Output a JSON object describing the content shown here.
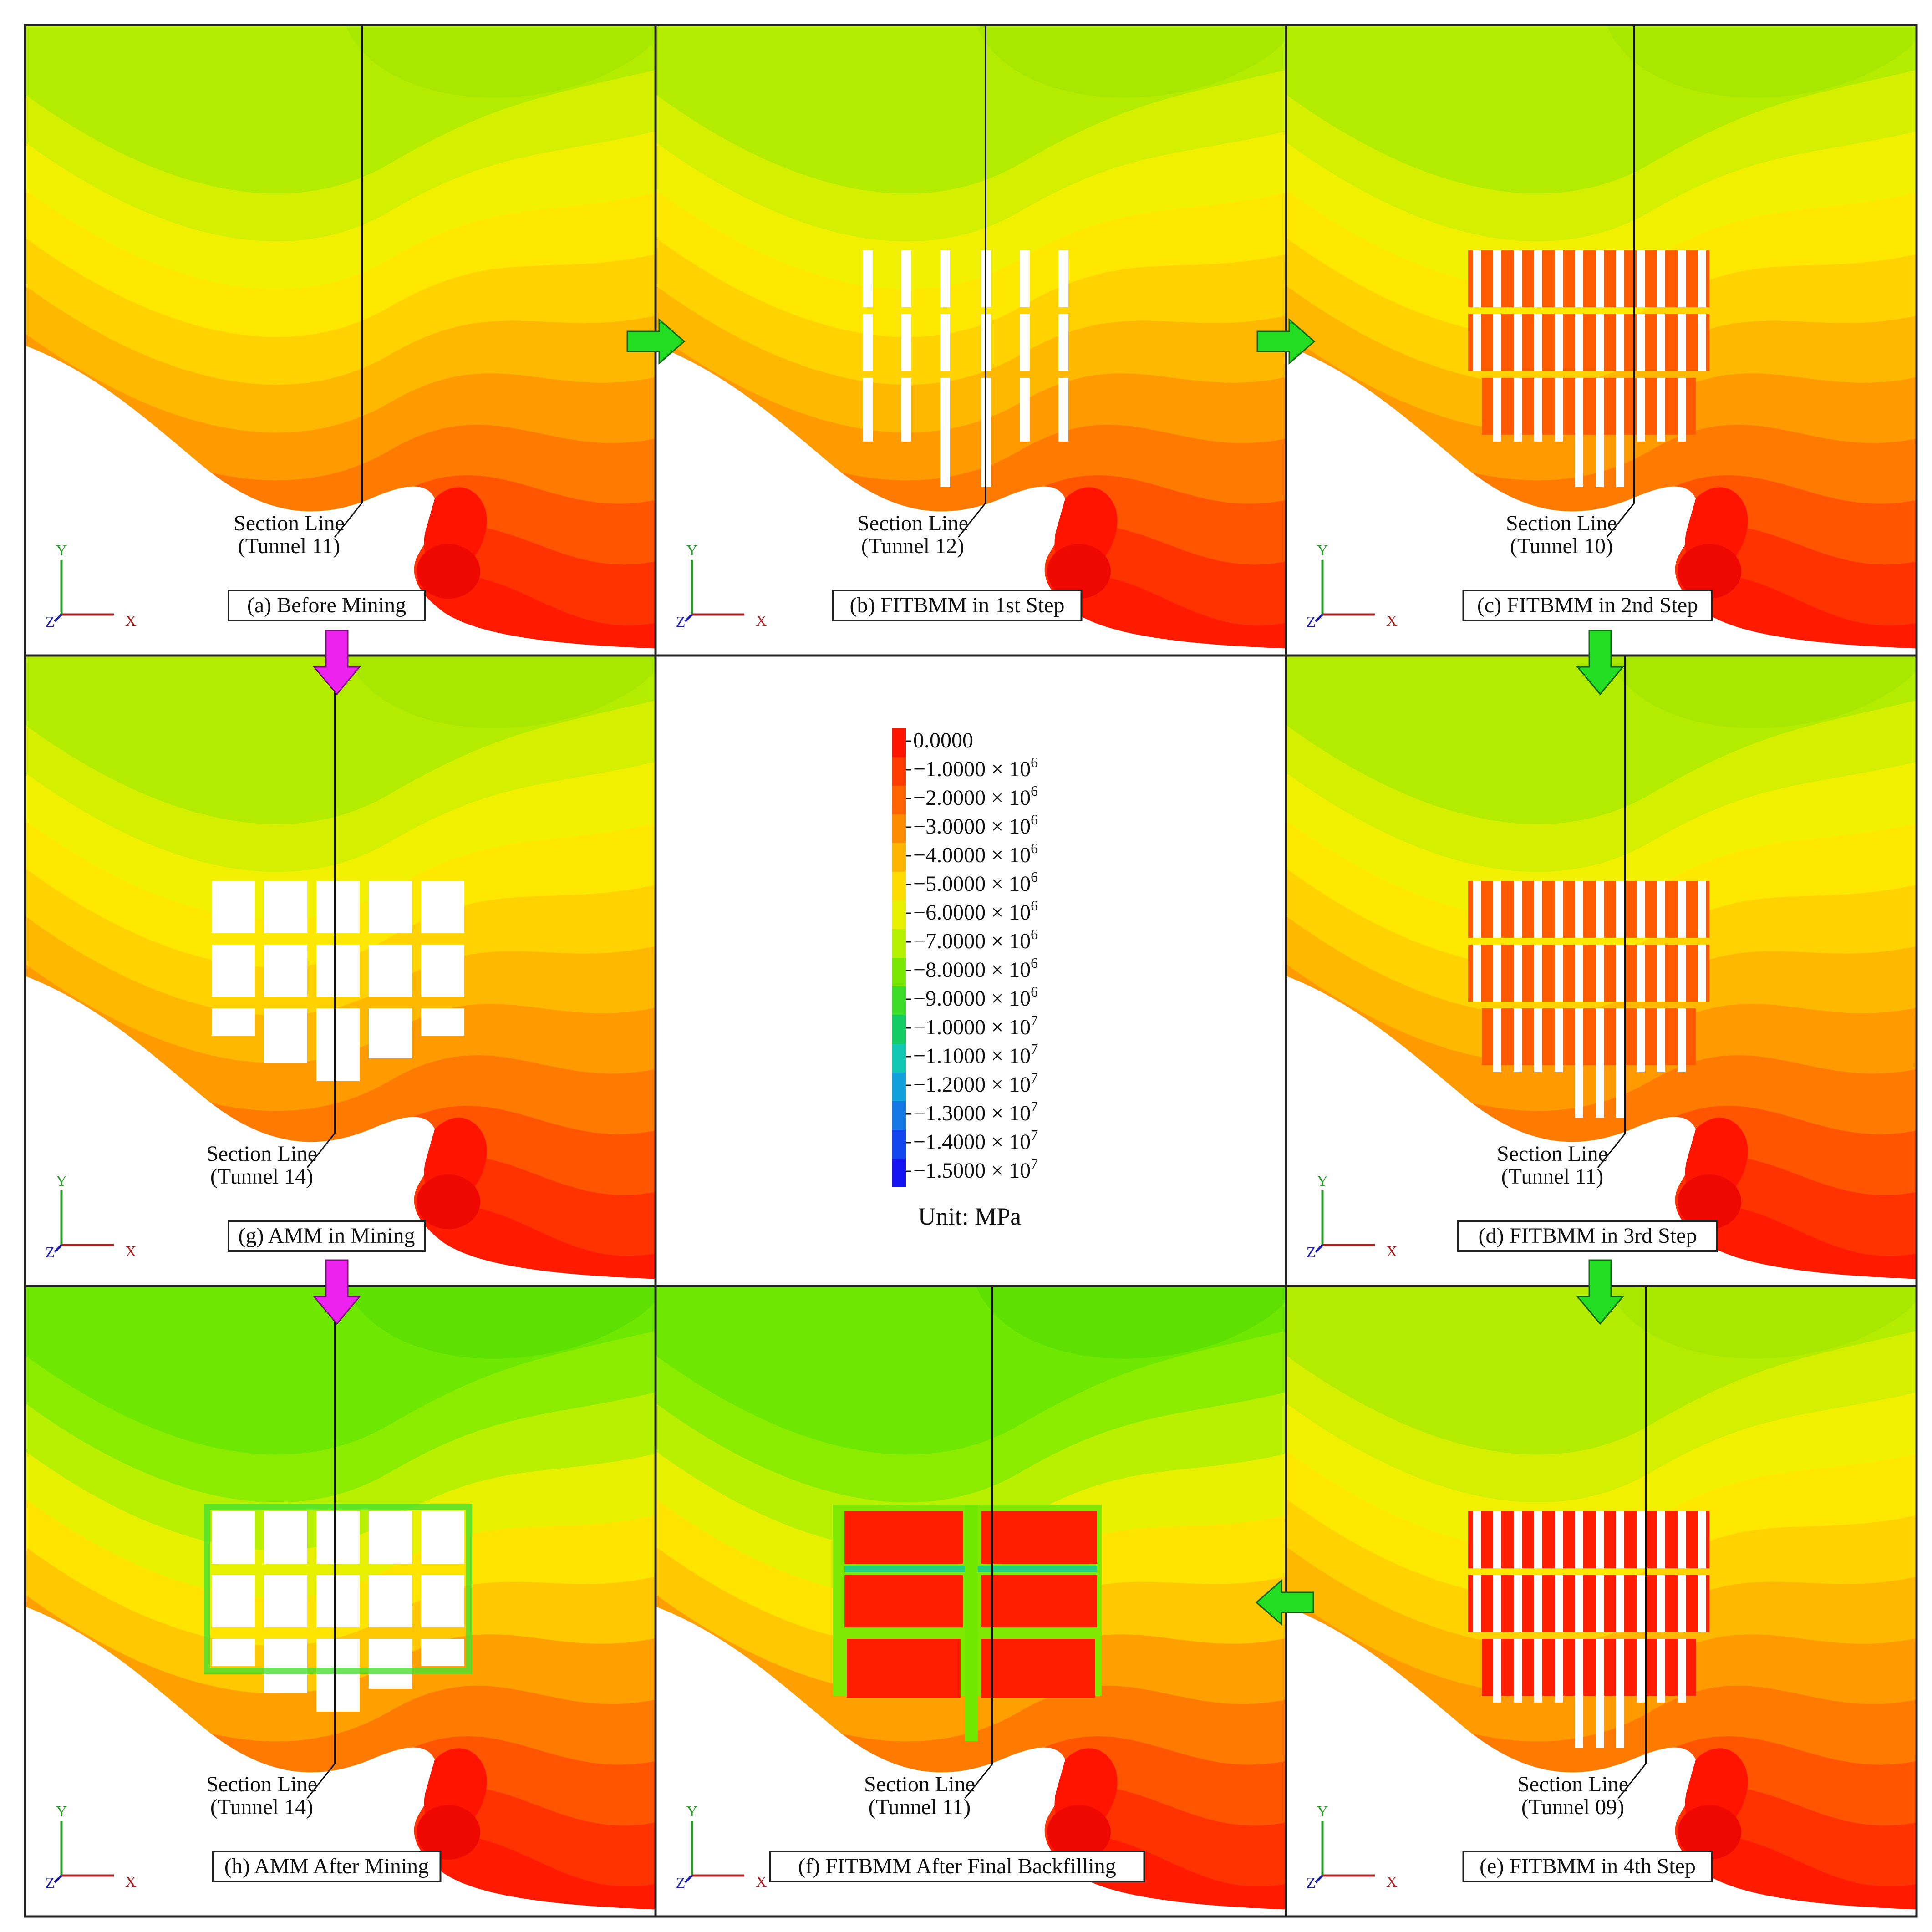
{
  "figure": {
    "colors": {
      "stress_ramp": [
        "#ff1a00",
        "#ff4400",
        "#ff7a00",
        "#ffae00",
        "#ffe000",
        "#d8f000",
        "#90f000",
        "#3ce43c",
        "#24c8a0",
        "#10a8e0",
        "#0a60f0",
        "#0a1ef0"
      ],
      "opening": "#ffffff",
      "arrow_green": "#22dd22",
      "arrow_magenta": "#ee22ee",
      "frame": "#222222"
    },
    "panels": [
      {
        "id": "a",
        "caption": "(a) Before Mining",
        "section_label": "Section Line",
        "tunnel": "(Tunnel 11)",
        "stage": "none"
      },
      {
        "id": "b",
        "caption": "(b) FITBMM in 1st Step",
        "section_label": "Section Line",
        "tunnel": "(Tunnel 12)",
        "stage": "step1"
      },
      {
        "id": "c",
        "caption": "(c) FITBMM in 2nd Step",
        "section_label": "Section Line",
        "tunnel": "(Tunnel 10)",
        "stage": "step2"
      },
      {
        "id": "g",
        "caption": "(g) AMM in Mining",
        "section_label": "Section Line",
        "tunnel": "(Tunnel 14)",
        "stage": "amm"
      },
      {
        "id": "d",
        "caption": "(d) FITBMM in 3rd  Step",
        "section_label": "Section Line",
        "tunnel": "(Tunnel 11)",
        "stage": "step3"
      },
      {
        "id": "h",
        "caption": "(h) AMM After Mining",
        "section_label": "Section Line",
        "tunnel": "(Tunnel 14)",
        "stage": "amm_after"
      },
      {
        "id": "f",
        "caption": "(f) FITBMM After Final Backfilling",
        "section_label": "Section Line",
        "tunnel": "(Tunnel 11)",
        "stage": "backfill"
      },
      {
        "id": "e",
        "caption": "(e) FITBMM in 4th Step",
        "section_label": "Section Line",
        "tunnel": "(Tunnel 09)",
        "stage": "step4"
      }
    ],
    "axis_labels": {
      "y": "Y",
      "x": "X",
      "z": "Z"
    },
    "legend": {
      "unit": "Unit: MPa",
      "entries": [
        {
          "mant": "0.0000",
          "exp": ""
        },
        {
          "mant": "−1.0000 × 10",
          "exp": "6"
        },
        {
          "mant": "−2.0000 × 10",
          "exp": "6"
        },
        {
          "mant": "−3.0000 × 10",
          "exp": "6"
        },
        {
          "mant": "−4.0000 × 10",
          "exp": "6"
        },
        {
          "mant": "−5.0000 × 10",
          "exp": "6"
        },
        {
          "mant": "−6.0000 × 10",
          "exp": "6"
        },
        {
          "mant": "−7.0000 × 10",
          "exp": "6"
        },
        {
          "mant": "−8.0000 × 10",
          "exp": "6"
        },
        {
          "mant": "−9.0000 × 10",
          "exp": "6"
        },
        {
          "mant": "−1.0000 × 10",
          "exp": "7"
        },
        {
          "mant": "−1.1000 × 10",
          "exp": "7"
        },
        {
          "mant": "−1.2000 × 10",
          "exp": "7"
        },
        {
          "mant": "−1.3000 × 10",
          "exp": "7"
        },
        {
          "mant": "−1.4000 × 10",
          "exp": "7"
        },
        {
          "mant": "−1.5000 × 10",
          "exp": "7"
        }
      ],
      "bar_colors": [
        "#ff1400",
        "#ff3c00",
        "#ff6400",
        "#ff8c00",
        "#ffb400",
        "#ffdc00",
        "#e6f000",
        "#b4f000",
        "#78e600",
        "#3cdc28",
        "#14cc64",
        "#10c8b4",
        "#10a0dc",
        "#1478e6",
        "#1446f0",
        "#1414f0"
      ]
    }
  }
}
